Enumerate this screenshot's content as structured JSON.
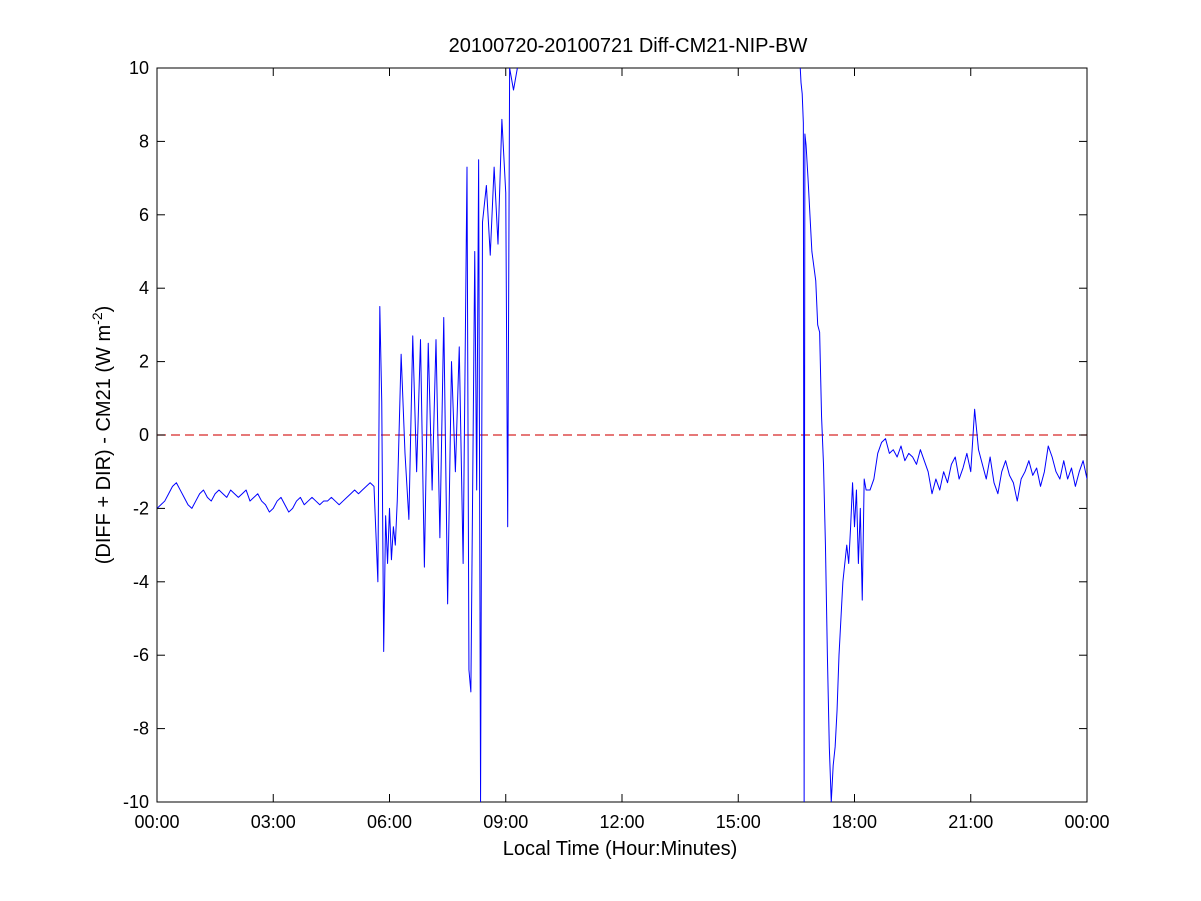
{
  "chart_data": {
    "type": "line",
    "title": "20100720-20100721 Diff-CM21-NIP-BW",
    "xlabel": "Local Time (Hour:Minutes)",
    "ylabel": {
      "prefix": "(DIFF + DIR) - CM21 (W m",
      "superscript": "-2",
      "suffix": ")"
    },
    "xlim": [
      0,
      24
    ],
    "ylim": [
      -10,
      10
    ],
    "x_unit": "hours",
    "x_ticks": [
      0,
      3,
      6,
      9,
      12,
      15,
      18,
      21,
      24
    ],
    "x_tick_labels": [
      "00:00",
      "03:00",
      "06:00",
      "09:00",
      "12:00",
      "15:00",
      "18:00",
      "21:00",
      "00:00"
    ],
    "y_ticks": [
      -10,
      -8,
      -6,
      -4,
      -2,
      0,
      2,
      4,
      6,
      8,
      10
    ],
    "y_tick_labels": [
      "-10",
      "-8",
      "-6",
      "-4",
      "-2",
      "0",
      "2",
      "4",
      "6",
      "8",
      "10"
    ],
    "grid": false,
    "reference_line": {
      "y": 0,
      "color": "#d62728",
      "style": "dashed"
    },
    "colors": {
      "series": "#0000ff",
      "reference": "#d62728",
      "axes": "#000000"
    },
    "series": [
      {
        "color": "#0000ff",
        "segments": [
          {
            "x": [
              0.0,
              0.1,
              0.2,
              0.3,
              0.4,
              0.5,
              0.6,
              0.7,
              0.8,
              0.9,
              1.0,
              1.1,
              1.2,
              1.3,
              1.4,
              1.5,
              1.6,
              1.7,
              1.8,
              1.9,
              2.0,
              2.1,
              2.2,
              2.3,
              2.4,
              2.5,
              2.6,
              2.7,
              2.8,
              2.9,
              3.0,
              3.1,
              3.2,
              3.3,
              3.4,
              3.5,
              3.6,
              3.7,
              3.8,
              3.9,
              4.0,
              4.1,
              4.2,
              4.3,
              4.4,
              4.5,
              4.6,
              4.7,
              4.8,
              4.9,
              5.0,
              5.1,
              5.2,
              5.3,
              5.4,
              5.5,
              5.6,
              5.7,
              5.75,
              5.8,
              5.85,
              5.9,
              5.95,
              6.0,
              6.05,
              6.1,
              6.15,
              6.2,
              6.3,
              6.4,
              6.5,
              6.6,
              6.7,
              6.8,
              6.9,
              7.0,
              7.1,
              7.2,
              7.3,
              7.4,
              7.5,
              7.6,
              7.7,
              7.8,
              7.9,
              8.0,
              8.05,
              8.1,
              8.2,
              8.25,
              8.3,
              8.35,
              8.4,
              8.5,
              8.6,
              8.7,
              8.8,
              8.9,
              9.0,
              9.05,
              9.1,
              9.2,
              9.3
            ],
            "y": [
              -2.0,
              -1.9,
              -1.8,
              -1.6,
              -1.4,
              -1.3,
              -1.5,
              -1.7,
              -1.9,
              -2.0,
              -1.8,
              -1.6,
              -1.5,
              -1.7,
              -1.8,
              -1.6,
              -1.5,
              -1.6,
              -1.7,
              -1.5,
              -1.6,
              -1.7,
              -1.6,
              -1.5,
              -1.8,
              -1.7,
              -1.6,
              -1.8,
              -1.9,
              -2.1,
              -2.0,
              -1.8,
              -1.7,
              -1.9,
              -2.1,
              -2.0,
              -1.8,
              -1.7,
              -1.9,
              -1.8,
              -1.7,
              -1.8,
              -1.9,
              -1.8,
              -1.8,
              -1.7,
              -1.8,
              -1.9,
              -1.8,
              -1.7,
              -1.6,
              -1.5,
              -1.6,
              -1.5,
              -1.4,
              -1.3,
              -1.4,
              -4.0,
              3.5,
              0.9,
              -5.9,
              -2.2,
              -3.5,
              -2.0,
              -3.4,
              -2.5,
              -3.0,
              -1.8,
              2.2,
              -0.5,
              -2.3,
              2.7,
              -1.0,
              2.6,
              -3.6,
              2.5,
              -1.5,
              2.6,
              -2.8,
              3.2,
              -4.6,
              2.0,
              -1.0,
              2.4,
              -3.5,
              7.3,
              -6.4,
              -7.0,
              5.0,
              -1.5,
              7.5,
              -10.0,
              5.8,
              6.8,
              4.9,
              7.3,
              5.2,
              8.6,
              6.6,
              -2.5,
              10.0,
              9.4,
              10.0
            ]
          },
          {
            "x": [
              16.6,
              16.62,
              16.65,
              16.68,
              16.7,
              16.72,
              16.75,
              16.8,
              16.9,
              17.0,
              17.05,
              17.1,
              17.15,
              17.2,
              17.25,
              17.3,
              17.35,
              17.4,
              17.45,
              17.5,
              17.55,
              17.6,
              17.65,
              17.7,
              17.8,
              17.85,
              17.9,
              17.95,
              18.0,
              18.05,
              18.1,
              18.15,
              18.2,
              18.25,
              18.3,
              18.4,
              18.5,
              18.6,
              18.7,
              18.8,
              18.9,
              19.0,
              19.1,
              19.2,
              19.3,
              19.4,
              19.5,
              19.6,
              19.7,
              19.8,
              19.9,
              20.0,
              20.1,
              20.2,
              20.3,
              20.4,
              20.5,
              20.6,
              20.7,
              20.8,
              20.9,
              21.0,
              21.1,
              21.2,
              21.3,
              21.4,
              21.5,
              21.6,
              21.7,
              21.8,
              21.9,
              22.0,
              22.1,
              22.2,
              22.3,
              22.4,
              22.5,
              22.6,
              22.7,
              22.8,
              22.9,
              23.0,
              23.1,
              23.2,
              23.3,
              23.4,
              23.5,
              23.6,
              23.7,
              23.8,
              23.9,
              24.0
            ],
            "y": [
              10.0,
              9.6,
              9.3,
              8.5,
              -10.0,
              8.2,
              7.9,
              7.0,
              5.0,
              4.2,
              3.0,
              2.8,
              0.5,
              -0.8,
              -3.0,
              -6.0,
              -8.5,
              -10.0,
              -9.0,
              -8.5,
              -7.5,
              -6.0,
              -5.0,
              -4.0,
              -3.0,
              -3.5,
              -2.5,
              -1.3,
              -2.5,
              -1.5,
              -3.5,
              -2.0,
              -4.5,
              -1.2,
              -1.5,
              -1.5,
              -1.2,
              -0.5,
              -0.2,
              -0.1,
              -0.5,
              -0.4,
              -0.6,
              -0.3,
              -0.7,
              -0.5,
              -0.6,
              -0.8,
              -0.4,
              -0.7,
              -1.0,
              -1.6,
              -1.2,
              -1.5,
              -1.0,
              -1.3,
              -0.8,
              -0.6,
              -1.2,
              -0.9,
              -0.5,
              -1.0,
              0.7,
              -0.4,
              -0.8,
              -1.2,
              -0.6,
              -1.3,
              -1.6,
              -1.0,
              -0.7,
              -1.1,
              -1.3,
              -1.8,
              -1.2,
              -1.0,
              -0.7,
              -1.1,
              -0.9,
              -1.4,
              -1.0,
              -0.3,
              -0.6,
              -1.0,
              -1.2,
              -0.7,
              -1.2,
              -0.9,
              -1.4,
              -1.0,
              -0.7,
              -1.2
            ]
          }
        ]
      }
    ]
  }
}
